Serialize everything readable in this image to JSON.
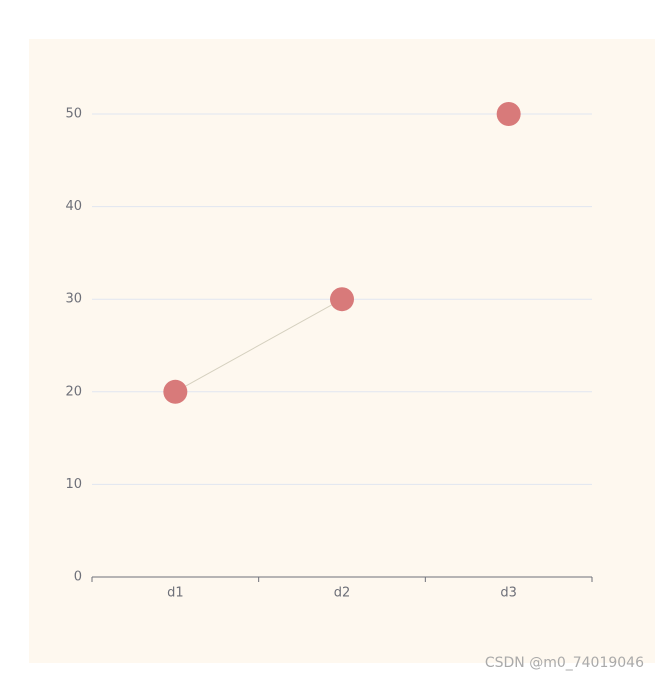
{
  "chart_data": {
    "type": "line",
    "categories": [
      "d1",
      "d2",
      "d3"
    ],
    "series": [
      {
        "color": "#d87a7a",
        "line_color": "#d5d0bf",
        "values": [
          20,
          30,
          null
        ]
      },
      {
        "color": "#d87a7a",
        "values": [
          null,
          null,
          50
        ]
      }
    ],
    "ylim": [
      0,
      50
    ],
    "yticks": [
      0,
      10,
      20,
      30,
      40,
      50
    ],
    "grid": true,
    "background": "#fef8ef",
    "watermark": "CSDN @m0_74019046"
  }
}
